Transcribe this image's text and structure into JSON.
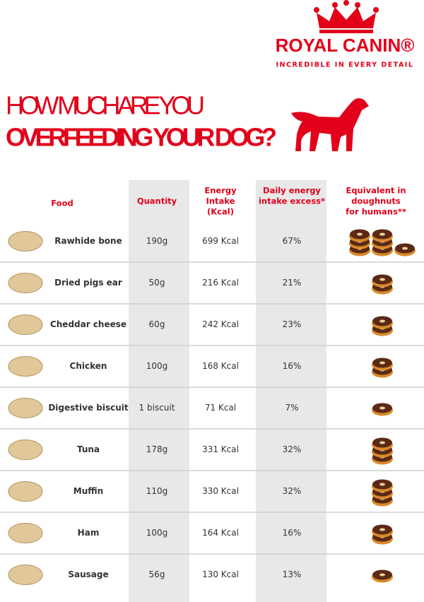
{
  "header": {
    "brand": "ROYAL CANIN®",
    "tagline": "INCREDIBLE IN EVERY DETAIL",
    "title_lines": [
      "HOW MUCH ARE YOU",
      "OVERFEEDING YOUR DOG?"
    ]
  },
  "table": {
    "columns": [
      [
        "Food"
      ],
      [
        "Quantity"
      ],
      [
        "Energy",
        "Intake",
        "(Kcal)"
      ],
      [
        "Daily energy",
        "intake excess*"
      ],
      [
        "Equivalent in",
        "doughnuts",
        "for humans**"
      ]
    ],
    "rows": [
      {
        "food": "Rawhide bone",
        "quantity": "190g",
        "energy": "699 Kcal",
        "excess": "67%",
        "doughnuts": 7
      },
      {
        "food": "Dried pigs ear",
        "quantity": "50g",
        "energy": "216 Kcal",
        "excess": "21%",
        "doughnuts": 2
      },
      {
        "food": "Cheddar cheese",
        "quantity": "60g",
        "energy": "242 Kcal",
        "excess": "23%",
        "doughnuts": 2
      },
      {
        "food": "Chicken",
        "quantity": "100g",
        "energy": "168 Kcal",
        "excess": "16%",
        "doughnuts": 2
      },
      {
        "food": "Digestive biscuit",
        "quantity": "1 biscuit",
        "energy": "71 Kcal",
        "excess": "7%",
        "doughnuts": 1
      },
      {
        "food": "Tuna",
        "quantity": "178g",
        "energy": "331 Kcal",
        "excess": "32%",
        "doughnuts": 3
      },
      {
        "food": "Muffin",
        "quantity": "110g",
        "energy": "330 Kcal",
        "excess": "32%",
        "doughnuts": 3
      },
      {
        "food": "Ham",
        "quantity": "100g",
        "energy": "164 Kcal",
        "excess": "16%",
        "doughnuts": 2
      },
      {
        "food": "Sausage",
        "quantity": "56g",
        "energy": "130 Kcal",
        "excess": "13%",
        "doughnuts": 1
      }
    ]
  }
}
